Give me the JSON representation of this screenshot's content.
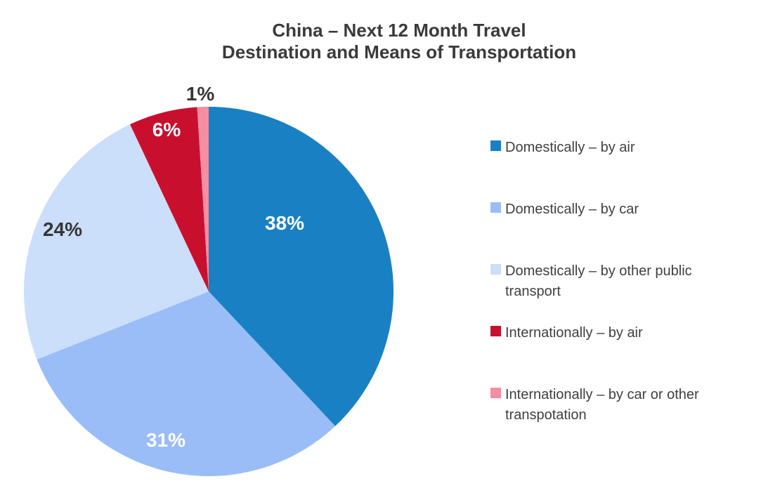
{
  "title_lines": [
    "China – Next 12 Month Travel",
    "Destination and Means of Transportation"
  ],
  "chart_data": {
    "type": "pie",
    "title": "China – Next 12 Month Travel Destination and Means of Transportation",
    "start_angle": "12 o'clock",
    "direction": "clockwise",
    "legend_position": "right",
    "slices": [
      {
        "label": "Domestically – by air",
        "value": 38,
        "pct_label": "38%",
        "color": "#1a80c4",
        "pct_label_color": "#ffffff"
      },
      {
        "label": "Domestically – by car",
        "value": 31,
        "pct_label": "31%",
        "color": "#9abdf7",
        "pct_label_color": "#ffffff"
      },
      {
        "label": "Domestically – by other public transport",
        "value": 24,
        "pct_label": "24%",
        "color": "#cbdefa",
        "pct_label_color": "#363636"
      },
      {
        "label": "Internationally – by air",
        "value": 6,
        "pct_label": "6%",
        "color": "#c8102e",
        "pct_label_color": "#ffffff"
      },
      {
        "label": "Internationally – by car or other transpotation",
        "value": 1,
        "pct_label": "1%",
        "color": "#f78da0",
        "pct_label_color": "#363636"
      }
    ]
  }
}
